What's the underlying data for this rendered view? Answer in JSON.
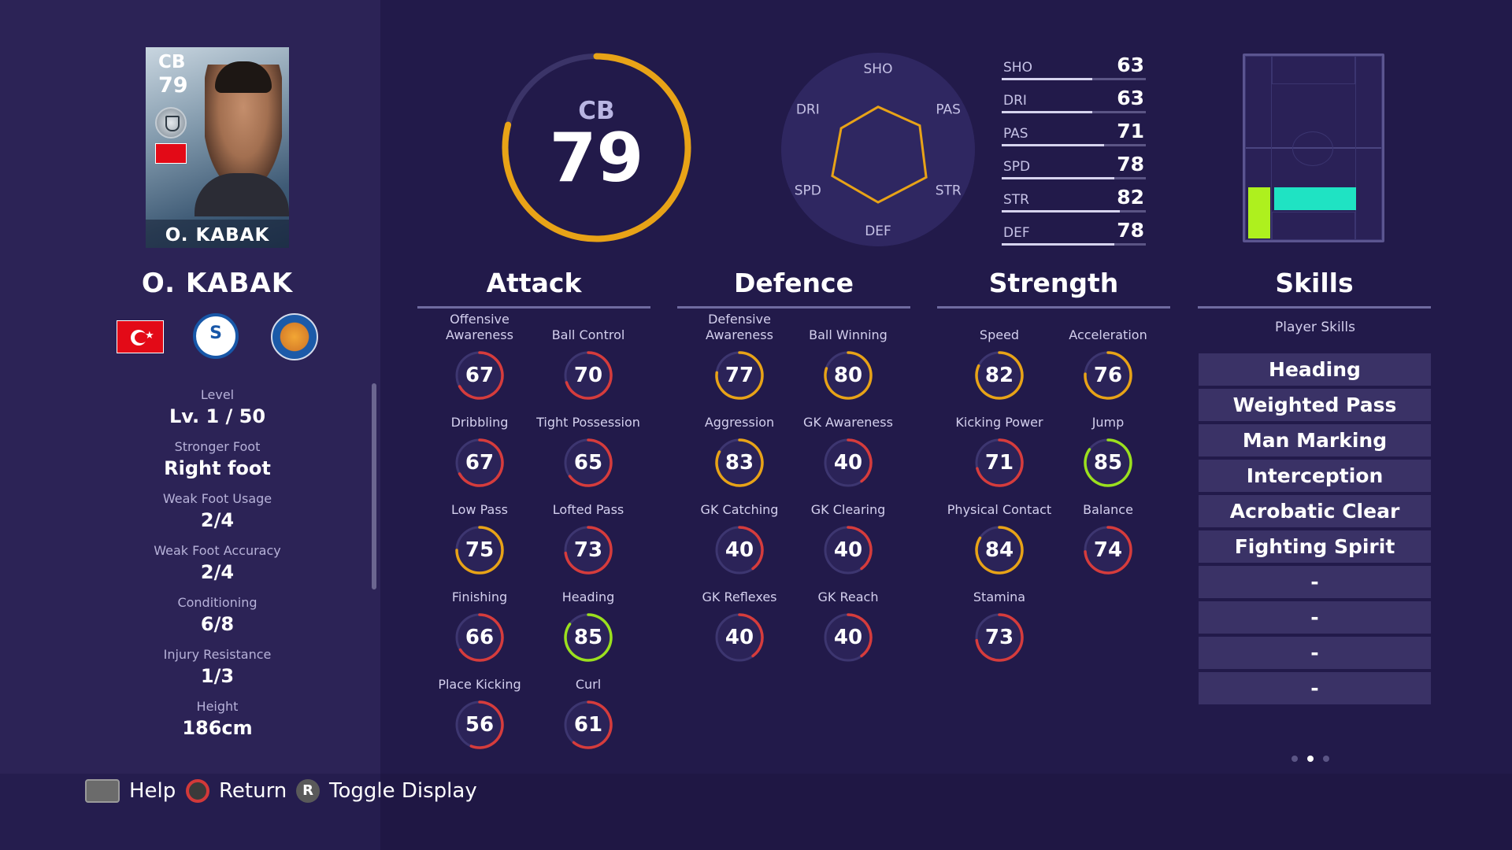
{
  "player": {
    "card_position": "CB",
    "card_rating": "79",
    "card_name": "O. KABAK",
    "name": "O. KABAK"
  },
  "info": [
    {
      "label": "Level",
      "value": "Lv. 1 / 50"
    },
    {
      "label": "Stronger Foot",
      "value": "Right foot"
    },
    {
      "label": "Weak Foot Usage",
      "value": "2/4"
    },
    {
      "label": "Weak Foot Accuracy",
      "value": "2/4"
    },
    {
      "label": "Conditioning",
      "value": "6/8"
    },
    {
      "label": "Injury Resistance",
      "value": "1/3"
    },
    {
      "label": "Height",
      "value": "186cm"
    }
  ],
  "overall": {
    "position": "CB",
    "rating": "79",
    "fraction": 0.79
  },
  "radar": {
    "labels": [
      "SHO",
      "PAS",
      "STR",
      "DEF",
      "SPD",
      "DRI"
    ],
    "values": [
      63,
      71,
      82,
      78,
      78,
      63
    ]
  },
  "summary_stats": [
    {
      "label": "SHO",
      "value": "63"
    },
    {
      "label": "DRI",
      "value": "63"
    },
    {
      "label": "PAS",
      "value": "71"
    },
    {
      "label": "SPD",
      "value": "78"
    },
    {
      "label": "STR",
      "value": "82"
    },
    {
      "label": "DEF",
      "value": "78"
    }
  ],
  "categories": {
    "attack": "Attack",
    "defence": "Defence",
    "strength": "Strength",
    "skills": "Skills"
  },
  "attack": [
    {
      "name": "Offensive Awareness",
      "value": "67"
    },
    {
      "name": "Ball Control",
      "value": "70"
    },
    {
      "name": "Dribbling",
      "value": "67"
    },
    {
      "name": "Tight Possession",
      "value": "65"
    },
    {
      "name": "Low Pass",
      "value": "75"
    },
    {
      "name": "Lofted Pass",
      "value": "73"
    },
    {
      "name": "Finishing",
      "value": "66"
    },
    {
      "name": "Heading",
      "value": "85"
    },
    {
      "name": "Place Kicking",
      "value": "56"
    },
    {
      "name": "Curl",
      "value": "61"
    }
  ],
  "defence": [
    {
      "name": "Defensive Awareness",
      "value": "77"
    },
    {
      "name": "Ball Winning",
      "value": "80"
    },
    {
      "name": "Aggression",
      "value": "83"
    },
    {
      "name": "GK Awareness",
      "value": "40"
    },
    {
      "name": "GK Catching",
      "value": "40"
    },
    {
      "name": "GK Clearing",
      "value": "40"
    },
    {
      "name": "GK Reflexes",
      "value": "40"
    },
    {
      "name": "GK Reach",
      "value": "40"
    }
  ],
  "strength": [
    {
      "name": "Speed",
      "value": "82"
    },
    {
      "name": "Acceleration",
      "value": "76"
    },
    {
      "name": "Kicking Power",
      "value": "71"
    },
    {
      "name": "Jump",
      "value": "85"
    },
    {
      "name": "Physical Contact",
      "value": "84"
    },
    {
      "name": "Balance",
      "value": "74"
    },
    {
      "name": "Stamina",
      "value": "73"
    }
  ],
  "skills": {
    "subtitle": "Player Skills",
    "items": [
      "Heading",
      "Weighted Pass",
      "Man Marking",
      "Interception",
      "Acrobatic Clear",
      "Fighting Spirit",
      "-",
      "-",
      "-",
      "-"
    ]
  },
  "prompts": {
    "help": "Help",
    "return": "Return",
    "toggle": "Toggle Display",
    "r_glyph": "R"
  },
  "colors": {
    "background": "#221a4a",
    "panel": "#2c2356",
    "rating_orange": "#e8a317",
    "rating_red": "#d63c3c",
    "rating_green": "#9be01e",
    "position_cb": "#1fe3c3",
    "position_lcb": "#aef01e"
  }
}
